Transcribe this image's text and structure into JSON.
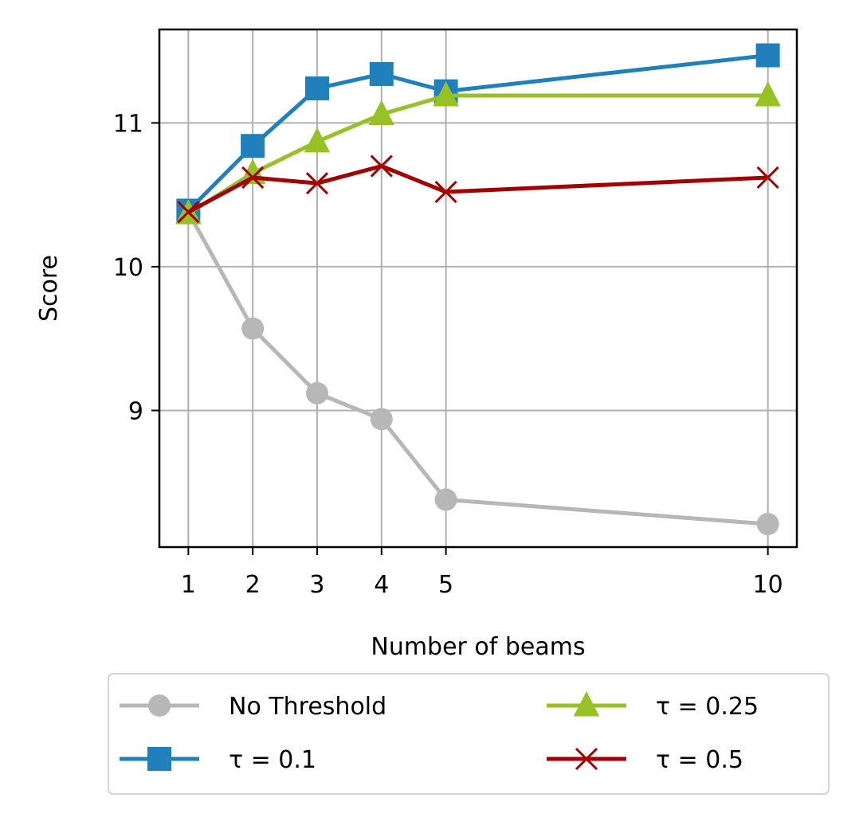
{
  "chart_data": {
    "type": "line",
    "title": "",
    "xlabel": "Number of beams",
    "ylabel": "Score",
    "x": [
      1,
      2,
      3,
      4,
      5,
      10
    ],
    "xticks": [
      "1",
      "2",
      "3",
      "4",
      "5",
      "10"
    ],
    "yticks": [
      9,
      10,
      11
    ],
    "ytick_labels": [
      "9",
      "10",
      "11"
    ],
    "xlim": [
      0.55,
      10.45
    ],
    "ylim": [
      8.05,
      11.65
    ],
    "grid": true,
    "legend_position": "below plot, two columns",
    "series": [
      {
        "name": "No Threshold",
        "values": [
          10.38,
          9.57,
          9.12,
          8.94,
          8.38,
          8.21
        ],
        "color": "#b7b7b7",
        "marker": "circle"
      },
      {
        "name": "τ = 0.1",
        "values": [
          10.39,
          10.84,
          11.24,
          11.34,
          11.22,
          11.47
        ],
        "color": "#1f80bb",
        "marker": "square"
      },
      {
        "name": "τ = 0.25",
        "values": [
          10.37,
          10.65,
          10.87,
          11.06,
          11.19,
          11.19
        ],
        "color": "#97c124",
        "marker": "triangle"
      },
      {
        "name": "τ = 0.5",
        "values": [
          10.38,
          10.62,
          10.58,
          10.7,
          10.52,
          10.62
        ],
        "color": "#a30000",
        "marker": "x"
      }
    ]
  }
}
